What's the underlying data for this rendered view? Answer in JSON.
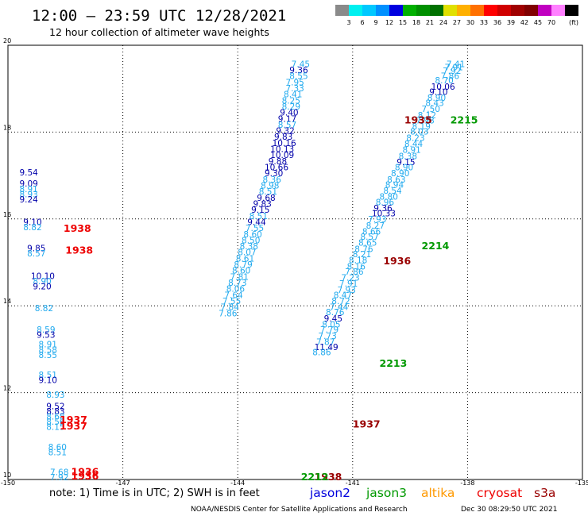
{
  "chart_data": {
    "type": "scatter",
    "title": "12:00 – 23:59 UTC 12/28/2021",
    "subtitle": "12 hour collection of altimeter wave heights",
    "xlim": [
      -150,
      -135
    ],
    "ylim": [
      10,
      20
    ],
    "x_ticks": [
      "-150",
      "-147",
      "-144",
      "-141",
      "-138",
      "-135"
    ],
    "y_ticks": [
      "20",
      "18",
      "16",
      "14",
      "12",
      "10"
    ],
    "grid": true,
    "colorbar": {
      "unit": "(ft)",
      "labels": [
        "3",
        "6",
        "9",
        "12",
        "15",
        "18",
        "21",
        "24",
        "27",
        "30",
        "33",
        "36",
        "39",
        "42",
        "45",
        "70"
      ],
      "colors": [
        "#8a8a8a",
        "#00f0f0",
        "#00c8ff",
        "#0090ff",
        "#0000e0",
        "#00b000",
        "#009000",
        "#007000",
        "#e0e000",
        "#ffb000",
        "#ff7000",
        "#ff0000",
        "#d00000",
        "#a00000",
        "#800000",
        "#c000c0",
        "#ff80ff",
        "#000000"
      ]
    },
    "note": "note:  1) Time is in UTC; 2) SWH is in feet",
    "legend": [
      {
        "name": "jason2",
        "color": "#0000dd"
      },
      {
        "name": "jason3",
        "color": "#009900"
      },
      {
        "name": "altika",
        "color": "#ff9900"
      },
      {
        "name": "cryosat",
        "color": "#ee0000"
      },
      {
        "name": "s3a",
        "color": "#990000"
      }
    ],
    "credit": "NOAA/NESDIS Center for Satellite Applications and Research",
    "timestamp": "Dec 30 08:29:50 UTC 2021",
    "time_labels": [
      {
        "text": "2215",
        "x": -138.45,
        "y": 18.2,
        "color": "#009900"
      },
      {
        "text": "1935",
        "x": -139.65,
        "y": 18.2,
        "color": "#990000"
      },
      {
        "text": "2214",
        "x": -139.2,
        "y": 15.3,
        "color": "#009900"
      },
      {
        "text": "1936",
        "x": -140.2,
        "y": 14.95,
        "color": "#990000"
      },
      {
        "text": "2213",
        "x": -140.3,
        "y": 12.6,
        "color": "#009900"
      },
      {
        "text": "1937",
        "x": -141.0,
        "y": 11.2,
        "color": "#990000"
      },
      {
        "text": "1938",
        "x": -148.55,
        "y": 15.7,
        "color": "#ee0000"
      },
      {
        "text": "1938",
        "x": -148.5,
        "y": 15.2,
        "color": "#ee0000"
      },
      {
        "text": "1937",
        "x": -148.65,
        "y": 11.3,
        "color": "#ee0000"
      },
      {
        "text": "1937",
        "x": -148.65,
        "y": 11.15,
        "color": "#ee0000"
      },
      {
        "text": "1936",
        "x": -148.35,
        "y": 10.1,
        "color": "#ee0000"
      },
      {
        "text": "1936",
        "x": -148.35,
        "y": 10.0,
        "color": "#ee0000"
      },
      {
        "text": "1938",
        "x": -142.0,
        "y": 9.98,
        "color": "#990000"
      },
      {
        "text": "2212",
        "x": -142.35,
        "y": 9.98,
        "color": "#009900"
      }
    ],
    "series": [
      {
        "name": "jason3",
        "points": [
          {
            "x": -138.55,
            "y": 19.5,
            "v": "7.41",
            "c": "#22aaee"
          },
          {
            "x": -138.6,
            "y": 19.42,
            "v": "7.91",
            "c": "#22aaee"
          },
          {
            "x": -138.65,
            "y": 19.34,
            "v": "7.92",
            "c": "#22aaee"
          },
          {
            "x": -138.7,
            "y": 19.22,
            "v": "7.86",
            "c": "#22aaee"
          },
          {
            "x": -138.85,
            "y": 19.12,
            "v": "8.70",
            "c": "#22aaee"
          },
          {
            "x": -138.95,
            "y": 18.98,
            "v": "10.06",
            "c": "#0000aa"
          },
          {
            "x": -139.0,
            "y": 18.86,
            "v": "9.10",
            "c": "#0000aa"
          },
          {
            "x": -139.05,
            "y": 18.72,
            "v": "8.90",
            "c": "#22aaee"
          },
          {
            "x": -139.1,
            "y": 18.6,
            "v": "8.43",
            "c": "#22aaee"
          },
          {
            "x": -139.2,
            "y": 18.46,
            "v": "7.50",
            "c": "#22aaee"
          },
          {
            "x": -139.3,
            "y": 18.32,
            "v": "8.12",
            "c": "#22aaee"
          },
          {
            "x": -139.35,
            "y": 18.2,
            "v": "7.98",
            "c": "#22aaee"
          },
          {
            "x": -139.45,
            "y": 18.06,
            "v": "8.19",
            "c": "#22aaee"
          },
          {
            "x": -139.5,
            "y": 17.94,
            "v": "8.03",
            "c": "#22aaee"
          },
          {
            "x": -139.6,
            "y": 17.8,
            "v": "8.23",
            "c": "#22aaee"
          },
          {
            "x": -139.65,
            "y": 17.66,
            "v": "8.44",
            "c": "#22aaee"
          },
          {
            "x": -139.7,
            "y": 17.52,
            "v": "8.91",
            "c": "#22aaee"
          },
          {
            "x": -139.8,
            "y": 17.38,
            "v": "8.38",
            "c": "#22aaee"
          },
          {
            "x": -139.85,
            "y": 17.24,
            "v": "9.15",
            "c": "#0000aa"
          },
          {
            "x": -139.9,
            "y": 17.12,
            "v": "8.90",
            "c": "#22aaee"
          },
          {
            "x": -140.0,
            "y": 16.98,
            "v": "8.90",
            "c": "#22aaee"
          },
          {
            "x": -140.1,
            "y": 16.84,
            "v": "8.63",
            "c": "#22aaee"
          },
          {
            "x": -140.15,
            "y": 16.72,
            "v": "8.94",
            "c": "#22aaee"
          },
          {
            "x": -140.2,
            "y": 16.58,
            "v": "8.54",
            "c": "#22aaee"
          },
          {
            "x": -140.3,
            "y": 16.44,
            "v": "8.80",
            "c": "#22aaee"
          },
          {
            "x": -140.4,
            "y": 16.32,
            "v": "8.96",
            "c": "#22aaee"
          },
          {
            "x": -140.45,
            "y": 16.18,
            "v": "9.36",
            "c": "#0000aa"
          },
          {
            "x": -140.5,
            "y": 16.06,
            "v": "10.33",
            "c": "#0000aa"
          },
          {
            "x": -140.6,
            "y": 15.92,
            "v": "7.93",
            "c": "#22aaee"
          },
          {
            "x": -140.65,
            "y": 15.78,
            "v": "8.27",
            "c": "#22aaee"
          },
          {
            "x": -140.75,
            "y": 15.64,
            "v": "8.66",
            "c": "#22aaee"
          },
          {
            "x": -140.8,
            "y": 15.52,
            "v": "8.57",
            "c": "#22aaee"
          },
          {
            "x": -140.85,
            "y": 15.38,
            "v": "8.65",
            "c": "#22aaee"
          },
          {
            "x": -140.95,
            "y": 15.24,
            "v": "8.76",
            "c": "#22aaee"
          },
          {
            "x": -141.0,
            "y": 15.12,
            "v": "8.21",
            "c": "#22aaee"
          },
          {
            "x": -141.1,
            "y": 14.98,
            "v": "8.18",
            "c": "#22aaee"
          },
          {
            "x": -141.15,
            "y": 14.84,
            "v": "8.16",
            "c": "#22aaee"
          },
          {
            "x": -141.2,
            "y": 14.72,
            "v": "7.86",
            "c": "#22aaee"
          },
          {
            "x": -141.3,
            "y": 14.58,
            "v": "7.23",
            "c": "#22aaee"
          },
          {
            "x": -141.35,
            "y": 14.44,
            "v": "7.91",
            "c": "#22aaee"
          },
          {
            "x": -141.4,
            "y": 14.3,
            "v": "7.93",
            "c": "#22aaee"
          },
          {
            "x": -141.5,
            "y": 14.18,
            "v": "8.47",
            "c": "#22aaee"
          },
          {
            "x": -141.55,
            "y": 14.04,
            "v": "8.72",
            "c": "#22aaee"
          },
          {
            "x": -141.6,
            "y": 13.9,
            "v": "7.44",
            "c": "#22aaee"
          },
          {
            "x": -141.7,
            "y": 13.78,
            "v": "8.76",
            "c": "#22aaee"
          },
          {
            "x": -141.75,
            "y": 13.64,
            "v": "9.45",
            "c": "#0000aa"
          },
          {
            "x": -141.8,
            "y": 13.5,
            "v": "8.05",
            "c": "#22aaee"
          },
          {
            "x": -141.85,
            "y": 13.38,
            "v": "7.79",
            "c": "#22aaee"
          },
          {
            "x": -141.9,
            "y": 13.24,
            "v": "7.73",
            "c": "#22aaee"
          },
          {
            "x": -141.95,
            "y": 13.1,
            "v": "7.87",
            "c": "#22aaee"
          },
          {
            "x": -142.0,
            "y": 12.98,
            "v": "11.49",
            "c": "#0000aa"
          },
          {
            "x": -142.05,
            "y": 12.86,
            "v": "8.86",
            "c": "#22aaee"
          }
        ]
      },
      {
        "name": "jason2",
        "points": [
          {
            "x": -142.6,
            "y": 19.5,
            "v": "7.45",
            "c": "#22aaee"
          },
          {
            "x": -142.65,
            "y": 19.36,
            "v": "9.36",
            "c": "#0000aa"
          },
          {
            "x": -142.65,
            "y": 19.22,
            "v": "8.55",
            "c": "#22aaee"
          },
          {
            "x": -142.75,
            "y": 19.08,
            "v": "7.95",
            "c": "#22aaee"
          },
          {
            "x": -142.75,
            "y": 18.94,
            "v": "7.33",
            "c": "#22aaee"
          },
          {
            "x": -142.8,
            "y": 18.8,
            "v": "8.41",
            "c": "#22aaee"
          },
          {
            "x": -142.85,
            "y": 18.66,
            "v": "8.25",
            "c": "#22aaee"
          },
          {
            "x": -142.85,
            "y": 18.52,
            "v": "8.29",
            "c": "#22aaee"
          },
          {
            "x": -142.9,
            "y": 18.38,
            "v": "9.40",
            "c": "#0000aa"
          },
          {
            "x": -142.95,
            "y": 18.24,
            "v": "9.17",
            "c": "#0000aa"
          },
          {
            "x": -142.95,
            "y": 18.1,
            "v": "8.57",
            "c": "#22aaee"
          },
          {
            "x": -143.0,
            "y": 17.96,
            "v": "9.32",
            "c": "#0000aa"
          },
          {
            "x": -143.05,
            "y": 17.82,
            "v": "9.83",
            "c": "#0000aa"
          },
          {
            "x": -143.1,
            "y": 17.68,
            "v": "10.16",
            "c": "#0000aa"
          },
          {
            "x": -143.15,
            "y": 17.54,
            "v": "10.13",
            "c": "#0000aa"
          },
          {
            "x": -143.15,
            "y": 17.4,
            "v": "10.09",
            "c": "#0000aa"
          },
          {
            "x": -143.2,
            "y": 17.26,
            "v": "9.88",
            "c": "#0000aa"
          },
          {
            "x": -143.3,
            "y": 17.12,
            "v": "10.66",
            "c": "#0000aa"
          },
          {
            "x": -143.3,
            "y": 16.98,
            "v": "9.30",
            "c": "#0000aa"
          },
          {
            "x": -143.35,
            "y": 16.84,
            "v": "8.36",
            "c": "#22aaee"
          },
          {
            "x": -143.4,
            "y": 16.7,
            "v": "8.98",
            "c": "#22aaee"
          },
          {
            "x": -143.45,
            "y": 16.56,
            "v": "8.51",
            "c": "#22aaee"
          },
          {
            "x": -143.5,
            "y": 16.42,
            "v": "9.68",
            "c": "#0000aa"
          },
          {
            "x": -143.6,
            "y": 16.28,
            "v": "9.83",
            "c": "#0000aa"
          },
          {
            "x": -143.65,
            "y": 16.14,
            "v": "9.15",
            "c": "#0000aa"
          },
          {
            "x": -143.7,
            "y": 16.0,
            "v": "8.51",
            "c": "#22aaee"
          },
          {
            "x": -143.75,
            "y": 15.86,
            "v": "9.44",
            "c": "#0000aa"
          },
          {
            "x": -143.8,
            "y": 15.72,
            "v": "7.55",
            "c": "#22aaee"
          },
          {
            "x": -143.85,
            "y": 15.58,
            "v": "8.60",
            "c": "#22aaee"
          },
          {
            "x": -143.9,
            "y": 15.44,
            "v": "8.50",
            "c": "#22aaee"
          },
          {
            "x": -143.95,
            "y": 15.3,
            "v": "8.38",
            "c": "#22aaee"
          },
          {
            "x": -144.0,
            "y": 15.16,
            "v": "8.07",
            "c": "#22aaee"
          },
          {
            "x": -144.05,
            "y": 15.02,
            "v": "8.61",
            "c": "#22aaee"
          },
          {
            "x": -144.1,
            "y": 14.88,
            "v": "8.79",
            "c": "#22aaee"
          },
          {
            "x": -144.15,
            "y": 14.74,
            "v": "8.60",
            "c": "#22aaee"
          },
          {
            "x": -144.2,
            "y": 14.6,
            "v": "7.81",
            "c": "#22aaee"
          },
          {
            "x": -144.25,
            "y": 14.46,
            "v": "8.73",
            "c": "#22aaee"
          },
          {
            "x": -144.3,
            "y": 14.32,
            "v": "8.06",
            "c": "#22aaee"
          },
          {
            "x": -144.35,
            "y": 14.18,
            "v": "7.64",
            "c": "#22aaee"
          },
          {
            "x": -144.4,
            "y": 14.04,
            "v": "7.55",
            "c": "#22aaee"
          },
          {
            "x": -144.45,
            "y": 13.9,
            "v": "7.84",
            "c": "#22aaee"
          },
          {
            "x": -144.5,
            "y": 13.76,
            "v": "7.86",
            "c": "#22aaee"
          }
        ]
      },
      {
        "name": "cryosat",
        "points": [
          {
            "x": -149.7,
            "y": 17.0,
            "v": "9.54",
            "c": "#0000aa"
          },
          {
            "x": -149.7,
            "y": 16.75,
            "v": "9.09",
            "c": "#0000aa"
          },
          {
            "x": -149.7,
            "y": 16.62,
            "v": "8.91",
            "c": "#22aaee"
          },
          {
            "x": -149.7,
            "y": 16.5,
            "v": "8.93",
            "c": "#22aaee"
          },
          {
            "x": -149.7,
            "y": 16.38,
            "v": "9.24",
            "c": "#0000aa"
          },
          {
            "x": -149.6,
            "y": 15.86,
            "v": "9.10",
            "c": "#0000aa"
          },
          {
            "x": -149.6,
            "y": 15.74,
            "v": "8.82",
            "c": "#22aaee"
          },
          {
            "x": -149.5,
            "y": 15.26,
            "v": "9.85",
            "c": "#0000aa"
          },
          {
            "x": -149.5,
            "y": 15.14,
            "v": "8.57",
            "c": "#22aaee"
          },
          {
            "x": -149.4,
            "y": 14.62,
            "v": "10.10",
            "c": "#0000aa"
          },
          {
            "x": -149.35,
            "y": 14.5,
            "v": "8.90",
            "c": "#22aaee"
          },
          {
            "x": -149.35,
            "y": 14.38,
            "v": "9.20",
            "c": "#0000aa"
          },
          {
            "x": -149.3,
            "y": 13.88,
            "v": "8.82",
            "c": "#22aaee"
          },
          {
            "x": -149.25,
            "y": 13.38,
            "v": "8.59",
            "c": "#22aaee"
          },
          {
            "x": -149.25,
            "y": 13.26,
            "v": "9.53",
            "c": "#0000aa"
          },
          {
            "x": -149.2,
            "y": 13.04,
            "v": "8.91",
            "c": "#22aaee"
          },
          {
            "x": -149.2,
            "y": 12.92,
            "v": "8.58",
            "c": "#22aaee"
          },
          {
            "x": -149.2,
            "y": 12.8,
            "v": "8.55",
            "c": "#22aaee"
          },
          {
            "x": -149.2,
            "y": 12.34,
            "v": "8.51",
            "c": "#22aaee"
          },
          {
            "x": -149.2,
            "y": 12.22,
            "v": "9.10",
            "c": "#0000aa"
          },
          {
            "x": -149.0,
            "y": 11.88,
            "v": "8.93",
            "c": "#22aaee"
          },
          {
            "x": -149.0,
            "y": 11.62,
            "v": "9.52",
            "c": "#0000aa"
          },
          {
            "x": -149.0,
            "y": 11.5,
            "v": "8.83",
            "c": "#0000aa"
          },
          {
            "x": -149.0,
            "y": 11.38,
            "v": "8.68",
            "c": "#22aaee"
          },
          {
            "x": -149.0,
            "y": 11.26,
            "v": "8.56",
            "c": "#22aaee"
          },
          {
            "x": -149.0,
            "y": 11.14,
            "v": "8.15",
            "c": "#22aaee"
          },
          {
            "x": -148.95,
            "y": 10.68,
            "v": "8.60",
            "c": "#22aaee"
          },
          {
            "x": -148.95,
            "y": 10.56,
            "v": "8.51",
            "c": "#22aaee"
          },
          {
            "x": -148.9,
            "y": 10.1,
            "v": "7.68",
            "c": "#22aaee"
          },
          {
            "x": -148.9,
            "y": 9.98,
            "v": "7.92",
            "c": "#22aaee"
          }
        ]
      }
    ]
  }
}
